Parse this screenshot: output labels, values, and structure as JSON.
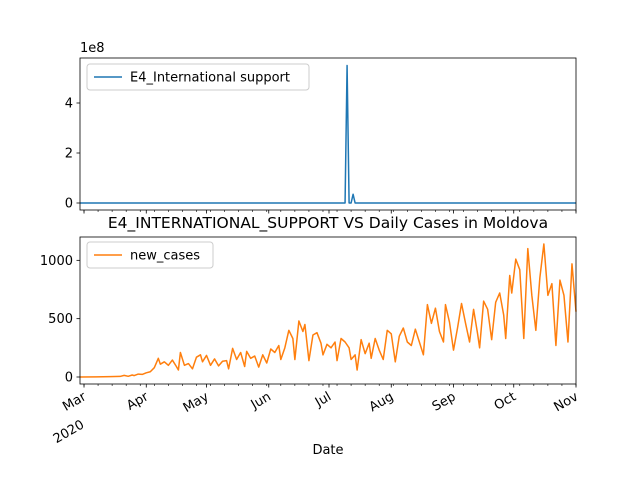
{
  "chart_data": [
    {
      "type": "line",
      "title": "",
      "offset_label": "1e8",
      "xlabel": "",
      "ylabel": "",
      "ylim": [
        -28000000,
        580000000
      ],
      "yticks": [
        0,
        200000000,
        400000000
      ],
      "ytick_labels": [
        "0",
        "2",
        "4"
      ],
      "legend_position": "upper-left",
      "grid": false,
      "series": [
        {
          "name": "E4_International support",
          "color": "#1f77b4",
          "points": [
            [
              "2020-02-28",
              0
            ],
            [
              "2020-07-09",
              0
            ],
            [
              "2020-07-10",
              550000000
            ],
            [
              "2020-07-11",
              0
            ],
            [
              "2020-07-12",
              0
            ],
            [
              "2020-07-13",
              35000000
            ],
            [
              "2020-07-14",
              0
            ],
            [
              "2020-11-01",
              0
            ]
          ]
        }
      ]
    },
    {
      "type": "line",
      "title": "E4_INTERNATIONAL_SUPPORT VS Daily Cases in Moldova",
      "xlabel": "Date",
      "ylabel": "",
      "ylim": [
        -60,
        1200
      ],
      "yticks": [
        0,
        500,
        1000
      ],
      "ytick_labels": [
        "0",
        "500",
        "1000"
      ],
      "xlim": [
        "2020-02-28",
        "2020-11-01"
      ],
      "xticks": [
        {
          "date": "2020-03-01",
          "label": "Mar",
          "sublabel": "2020"
        },
        {
          "date": "2020-04-01",
          "label": "Apr",
          "sublabel": ""
        },
        {
          "date": "2020-05-01",
          "label": "May",
          "sublabel": ""
        },
        {
          "date": "2020-06-01",
          "label": "Jun",
          "sublabel": ""
        },
        {
          "date": "2020-07-01",
          "label": "Jul",
          "sublabel": ""
        },
        {
          "date": "2020-08-01",
          "label": "Aug",
          "sublabel": ""
        },
        {
          "date": "2020-09-01",
          "label": "Sep",
          "sublabel": ""
        },
        {
          "date": "2020-10-01",
          "label": "Oct",
          "sublabel": ""
        },
        {
          "date": "2020-11-01",
          "label": "Nov",
          "sublabel": ""
        }
      ],
      "legend_position": "upper-left",
      "grid": false,
      "series": [
        {
          "name": "new_cases",
          "color": "#ff7f0e",
          "points": [
            [
              "2020-02-28",
              0
            ],
            [
              "2020-03-07",
              1
            ],
            [
              "2020-03-14",
              3
            ],
            [
              "2020-03-19",
              5
            ],
            [
              "2020-03-21",
              14
            ],
            [
              "2020-03-23",
              6
            ],
            [
              "2020-03-25",
              17
            ],
            [
              "2020-03-26",
              12
            ],
            [
              "2020-03-28",
              25
            ],
            [
              "2020-03-30",
              22
            ],
            [
              "2020-04-01",
              36
            ],
            [
              "2020-04-03",
              45
            ],
            [
              "2020-04-05",
              80
            ],
            [
              "2020-04-07",
              160
            ],
            [
              "2020-04-08",
              110
            ],
            [
              "2020-04-10",
              130
            ],
            [
              "2020-04-12",
              100
            ],
            [
              "2020-04-14",
              145
            ],
            [
              "2020-04-16",
              90
            ],
            [
              "2020-04-17",
              60
            ],
            [
              "2020-04-18",
              210
            ],
            [
              "2020-04-20",
              100
            ],
            [
              "2020-04-22",
              115
            ],
            [
              "2020-04-24",
              70
            ],
            [
              "2020-04-26",
              170
            ],
            [
              "2020-04-28",
              190
            ],
            [
              "2020-04-29",
              130
            ],
            [
              "2020-05-01",
              185
            ],
            [
              "2020-05-03",
              100
            ],
            [
              "2020-05-05",
              155
            ],
            [
              "2020-05-07",
              95
            ],
            [
              "2020-05-09",
              135
            ],
            [
              "2020-05-11",
              140
            ],
            [
              "2020-05-12",
              70
            ],
            [
              "2020-05-14",
              245
            ],
            [
              "2020-05-16",
              150
            ],
            [
              "2020-05-18",
              210
            ],
            [
              "2020-05-20",
              90
            ],
            [
              "2020-05-21",
              220
            ],
            [
              "2020-05-23",
              160
            ],
            [
              "2020-05-25",
              180
            ],
            [
              "2020-05-27",
              85
            ],
            [
              "2020-05-29",
              190
            ],
            [
              "2020-05-31",
              120
            ],
            [
              "2020-06-02",
              240
            ],
            [
              "2020-06-04",
              210
            ],
            [
              "2020-06-06",
              270
            ],
            [
              "2020-06-07",
              150
            ],
            [
              "2020-06-09",
              250
            ],
            [
              "2020-06-11",
              400
            ],
            [
              "2020-06-13",
              330
            ],
            [
              "2020-06-14",
              150
            ],
            [
              "2020-06-16",
              480
            ],
            [
              "2020-06-18",
              390
            ],
            [
              "2020-06-19",
              450
            ],
            [
              "2020-06-21",
              140
            ],
            [
              "2020-06-23",
              360
            ],
            [
              "2020-06-25",
              380
            ],
            [
              "2020-06-27",
              290
            ],
            [
              "2020-06-28",
              190
            ],
            [
              "2020-06-30",
              280
            ],
            [
              "2020-07-02",
              250
            ],
            [
              "2020-07-04",
              300
            ],
            [
              "2020-07-05",
              140
            ],
            [
              "2020-07-07",
              330
            ],
            [
              "2020-07-09",
              300
            ],
            [
              "2020-07-11",
              250
            ],
            [
              "2020-07-12",
              150
            ],
            [
              "2020-07-14",
              190
            ],
            [
              "2020-07-15",
              60
            ],
            [
              "2020-07-17",
              320
            ],
            [
              "2020-07-19",
              200
            ],
            [
              "2020-07-21",
              290
            ],
            [
              "2020-07-22",
              160
            ],
            [
              "2020-07-24",
              330
            ],
            [
              "2020-07-26",
              230
            ],
            [
              "2020-07-28",
              150
            ],
            [
              "2020-07-30",
              400
            ],
            [
              "2020-08-01",
              370
            ],
            [
              "2020-08-03",
              130
            ],
            [
              "2020-08-05",
              350
            ],
            [
              "2020-08-07",
              420
            ],
            [
              "2020-08-09",
              300
            ],
            [
              "2020-08-11",
              270
            ],
            [
              "2020-08-13",
              410
            ],
            [
              "2020-08-15",
              300
            ],
            [
              "2020-08-17",
              190
            ],
            [
              "2020-08-19",
              620
            ],
            [
              "2020-08-21",
              460
            ],
            [
              "2020-08-23",
              590
            ],
            [
              "2020-08-25",
              390
            ],
            [
              "2020-08-27",
              300
            ],
            [
              "2020-08-28",
              620
            ],
            [
              "2020-08-30",
              470
            ],
            [
              "2020-09-01",
              230
            ],
            [
              "2020-09-03",
              420
            ],
            [
              "2020-09-05",
              630
            ],
            [
              "2020-09-07",
              460
            ],
            [
              "2020-09-09",
              300
            ],
            [
              "2020-09-11",
              580
            ],
            [
              "2020-09-13",
              370
            ],
            [
              "2020-09-14",
              250
            ],
            [
              "2020-09-16",
              650
            ],
            [
              "2020-09-18",
              580
            ],
            [
              "2020-09-20",
              320
            ],
            [
              "2020-09-22",
              640
            ],
            [
              "2020-09-24",
              720
            ],
            [
              "2020-09-26",
              530
            ],
            [
              "2020-09-27",
              330
            ],
            [
              "2020-09-29",
              870
            ],
            [
              "2020-09-30",
              720
            ],
            [
              "2020-10-02",
              1010
            ],
            [
              "2020-10-04",
              920
            ],
            [
              "2020-10-06",
              330
            ],
            [
              "2020-10-08",
              1100
            ],
            [
              "2020-10-10",
              700
            ],
            [
              "2020-10-12",
              400
            ],
            [
              "2020-10-14",
              850
            ],
            [
              "2020-10-16",
              1140
            ],
            [
              "2020-10-18",
              700
            ],
            [
              "2020-10-20",
              800
            ],
            [
              "2020-10-22",
              270
            ],
            [
              "2020-10-24",
              830
            ],
            [
              "2020-10-26",
              700
            ],
            [
              "2020-10-28",
              300
            ],
            [
              "2020-10-30",
              970
            ],
            [
              "2020-11-01",
              560
            ]
          ]
        }
      ]
    }
  ]
}
